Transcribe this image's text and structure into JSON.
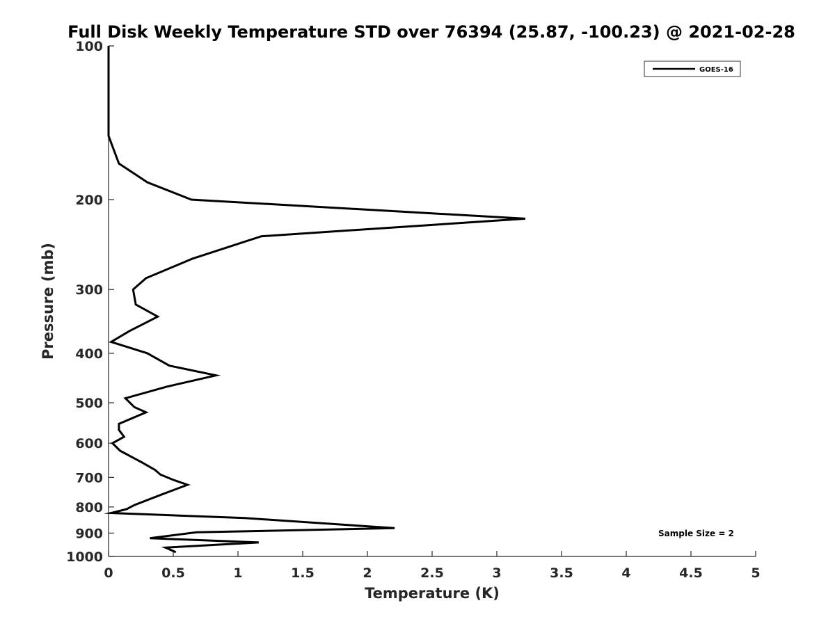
{
  "chart_data": {
    "type": "line",
    "title": "Full Disk Weekly Temperature STD over 76394 (25.87, -100.23) @ 2021-02-28",
    "xlabel": "Temperature (K)",
    "ylabel": "Pressure (mb)",
    "xlim": [
      0,
      5
    ],
    "ylim": [
      100,
      1000
    ],
    "y_scale": "log",
    "y_reversed": true,
    "grid": false,
    "legend_position": "top-right",
    "x_ticks": [
      "0",
      "0.5",
      "1",
      "1.5",
      "2",
      "2.5",
      "3",
      "3.5",
      "4",
      "4.5",
      "5"
    ],
    "y_ticks": [
      "100",
      "200",
      "300",
      "400",
      "500",
      "600",
      "700",
      "800",
      "900",
      "1000"
    ],
    "annotation": "Sample Size = 2",
    "series": [
      {
        "name": "GOES-16",
        "color": "#000000",
        "points": [
          [
            0.0,
            100
          ],
          [
            0.0,
            150
          ],
          [
            0.08,
            170
          ],
          [
            0.3,
            185
          ],
          [
            0.64,
            200
          ],
          [
            3.22,
            218
          ],
          [
            1.18,
            236
          ],
          [
            0.65,
            261
          ],
          [
            0.29,
            285
          ],
          [
            0.19,
            300
          ],
          [
            0.21,
            321
          ],
          [
            0.38,
            339
          ],
          [
            0.16,
            362
          ],
          [
            0.02,
            380
          ],
          [
            0.3,
            400
          ],
          [
            0.47,
            423
          ],
          [
            0.83,
            442
          ],
          [
            0.45,
            465
          ],
          [
            0.13,
            490
          ],
          [
            0.2,
            510
          ],
          [
            0.29,
            522
          ],
          [
            0.08,
            550
          ],
          [
            0.08,
            565
          ],
          [
            0.12,
            583
          ],
          [
            0.03,
            600
          ],
          [
            0.09,
            621
          ],
          [
            0.26,
            655
          ],
          [
            0.36,
            677
          ],
          [
            0.4,
            691
          ],
          [
            0.5,
            708
          ],
          [
            0.61,
            724
          ],
          [
            0.4,
            758
          ],
          [
            0.2,
            793
          ],
          [
            0.14,
            808
          ],
          [
            0.02,
            822
          ],
          [
            1.05,
            841
          ],
          [
            2.21,
            880
          ],
          [
            0.68,
            897
          ],
          [
            0.32,
            921
          ],
          [
            1.16,
            939
          ],
          [
            0.44,
            961
          ],
          [
            0.52,
            981
          ]
        ]
      }
    ]
  }
}
